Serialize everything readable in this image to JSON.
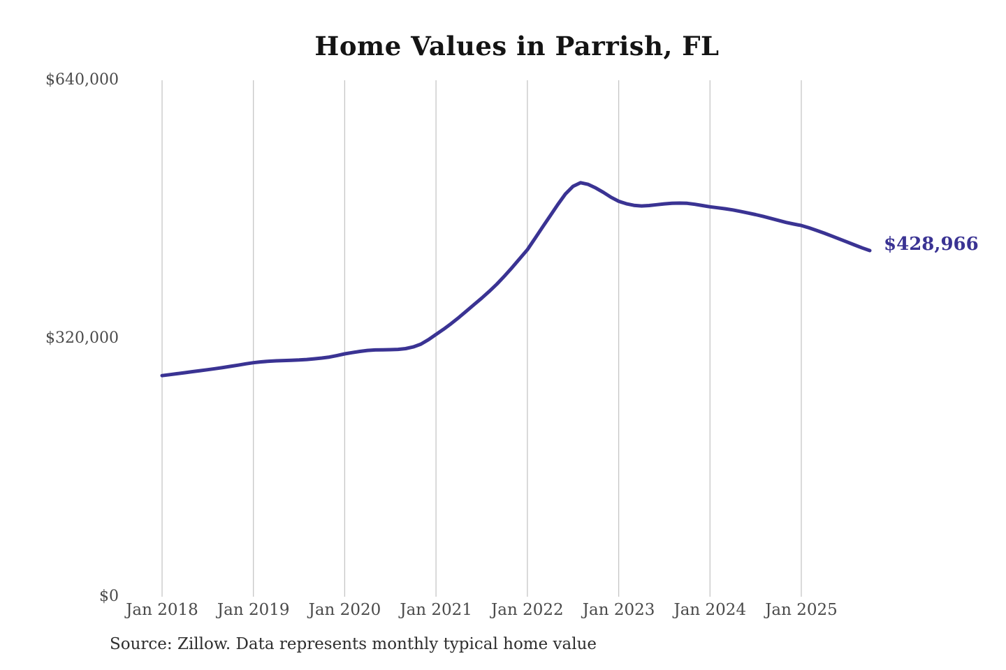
{
  "title": "Home Values in Parrish, FL",
  "source_note": "Source: Zillow. Data represents monthly typical home value",
  "colors": {
    "line": "#3a3393",
    "end_label": "#3a3393",
    "grid": "#c6c6c6",
    "title_text": "#141414",
    "axis_text": "#4a4a4a",
    "source_text": "#2e2e2e",
    "background": "#ffffff"
  },
  "chart_data": {
    "type": "line",
    "title": "Home Values in Parrish, FL",
    "xlabel": "",
    "ylabel": "",
    "ylim": [
      0,
      640000
    ],
    "grid": "vertical-only",
    "legend": "none",
    "frequency": "monthly",
    "y_ticks": [
      {
        "label": "$0",
        "value": 0
      },
      {
        "label": "$320,000",
        "value": 320000
      },
      {
        "label": "$640,000",
        "value": 640000
      }
    ],
    "x_ticks": [
      {
        "label": "Jan 2018",
        "month_index": 0
      },
      {
        "label": "Jan 2019",
        "month_index": 12
      },
      {
        "label": "Jan 2020",
        "month_index": 24
      },
      {
        "label": "Jan 2021",
        "month_index": 36
      },
      {
        "label": "Jan 2022",
        "month_index": 48
      },
      {
        "label": "Jan 2023",
        "month_index": 60
      },
      {
        "label": "Jan 2024",
        "month_index": 72
      },
      {
        "label": "Jan 2025",
        "month_index": 84
      }
    ],
    "x": [
      "2018-01",
      "2018-02",
      "2018-03",
      "2018-04",
      "2018-05",
      "2018-06",
      "2018-07",
      "2018-08",
      "2018-09",
      "2018-10",
      "2018-11",
      "2018-12",
      "2019-01",
      "2019-02",
      "2019-03",
      "2019-04",
      "2019-05",
      "2019-06",
      "2019-07",
      "2019-08",
      "2019-09",
      "2019-10",
      "2019-11",
      "2019-12",
      "2020-01",
      "2020-02",
      "2020-03",
      "2020-04",
      "2020-05",
      "2020-06",
      "2020-07",
      "2020-08",
      "2020-09",
      "2020-10",
      "2020-11",
      "2020-12",
      "2021-01",
      "2021-02",
      "2021-03",
      "2021-04",
      "2021-05",
      "2021-06",
      "2021-07",
      "2021-08",
      "2021-09",
      "2021-10",
      "2021-11",
      "2021-12",
      "2022-01",
      "2022-02",
      "2022-03",
      "2022-04",
      "2022-05",
      "2022-06",
      "2022-07",
      "2022-08",
      "2022-09",
      "2022-10",
      "2022-11",
      "2022-12",
      "2023-01",
      "2023-02",
      "2023-03",
      "2023-04",
      "2023-05",
      "2023-06",
      "2023-07",
      "2023-08",
      "2023-09",
      "2023-10",
      "2023-11",
      "2023-12",
      "2024-01",
      "2024-02",
      "2024-03",
      "2024-04",
      "2024-05",
      "2024-06",
      "2024-07",
      "2024-08",
      "2024-09",
      "2024-10",
      "2024-11",
      "2024-12",
      "2025-01",
      "2025-02",
      "2025-03",
      "2025-04",
      "2025-05",
      "2025-06",
      "2025-07",
      "2025-08",
      "2025-09",
      "2025-10"
    ],
    "series": [
      {
        "name": "Typical home value",
        "values": [
          274000,
          275200,
          276400,
          277600,
          278900,
          280100,
          281300,
          282600,
          284000,
          285500,
          287000,
          288600,
          290000,
          291000,
          291800,
          292300,
          292700,
          293000,
          293400,
          294000,
          294800,
          295800,
          297000,
          298900,
          301000,
          302500,
          304000,
          305200,
          305800,
          306000,
          306200,
          306500,
          307500,
          309500,
          313000,
          318500,
          325000,
          331500,
          338500,
          346000,
          354000,
          362000,
          370000,
          378500,
          387500,
          397500,
          408000,
          419000,
          430000,
          444000,
          458000,
          472000,
          486000,
          499000,
          508500,
          513000,
          511000,
          506500,
          501000,
          495000,
          490000,
          487000,
          485000,
          484200,
          484800,
          485800,
          486800,
          487500,
          487800,
          487500,
          486300,
          484800,
          483200,
          482000,
          480800,
          479300,
          477500,
          475500,
          473500,
          471300,
          468800,
          466300,
          463800,
          461800,
          460000,
          457200,
          454000,
          450600,
          447000,
          443300,
          439600,
          435900,
          432300,
          428966
        ]
      }
    ],
    "final_value": 428966,
    "final_value_label": "$428,966"
  }
}
